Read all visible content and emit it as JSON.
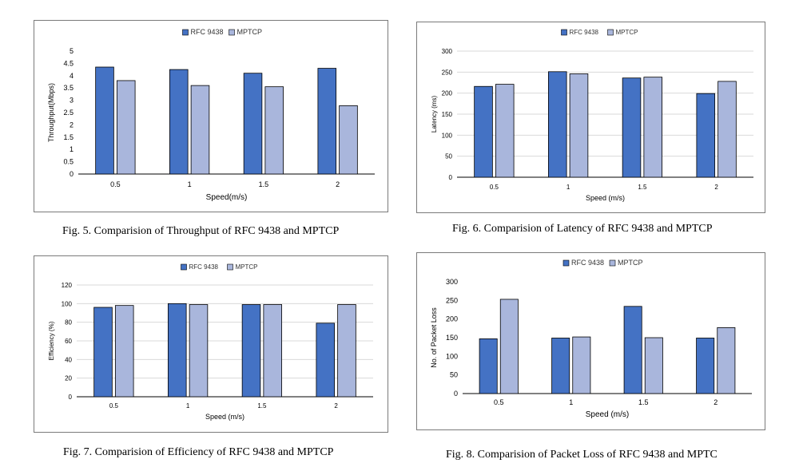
{
  "colors": {
    "rfc": "#4472c4",
    "mptcp": "#a9b6dc",
    "grid": "#d9d9d9",
    "axis": "#000000"
  },
  "captions": [
    "Fig. 5.  Comparision of  Throughput of RFC 9438 and MPTCP",
    "Fig. 6.  Comparision of  Latency of RFC 9438 and MPTCP",
    "Fig. 7.  Comparision of  Efficiency of  RFC 9438 and MPTCP",
    "Fig. 8.  Comparision of  Packet Loss of  RFC 9438 and MPTC"
  ],
  "chart_data": [
    {
      "type": "bar",
      "categories": [
        "0.5",
        "1",
        "1.5",
        "2"
      ],
      "series": [
        {
          "name": "RFC 9438",
          "values": [
            4.35,
            4.25,
            4.1,
            4.3
          ]
        },
        {
          "name": "MPTCP",
          "values": [
            3.8,
            3.6,
            3.55,
            2.78
          ]
        }
      ],
      "xlabel": "Speed(m/s)",
      "ylabel": "Throughput(Mbps)",
      "ylim": [
        0,
        5
      ],
      "yticks": [
        "0",
        "0.5",
        "1",
        "1.5",
        "2",
        "2.5",
        "3",
        "3.5",
        "4",
        "4.5",
        "5"
      ],
      "grid": false,
      "legend": "top-center"
    },
    {
      "type": "bar",
      "categories": [
        "0.5",
        "1",
        "1.5",
        "2"
      ],
      "series": [
        {
          "name": "RFC 9438",
          "values": [
            216,
            251,
            236,
            199
          ]
        },
        {
          "name": "MPTCP",
          "values": [
            221,
            246,
            238,
            228
          ]
        }
      ],
      "xlabel": "Speed (m/s)",
      "ylabel": "Latency (ms)",
      "ylim": [
        0,
        300
      ],
      "yticks": [
        "0",
        "50",
        "100",
        "150",
        "200",
        "250",
        "300"
      ],
      "grid": true,
      "legend": "top-center"
    },
    {
      "type": "bar",
      "categories": [
        "0.5",
        "1",
        "1.5",
        "2"
      ],
      "series": [
        {
          "name": "RFC 9438",
          "values": [
            96,
            100,
            99,
            79
          ]
        },
        {
          "name": "MPTCP",
          "values": [
            98,
            99,
            99,
            99
          ]
        }
      ],
      "xlabel": "Speed (m/s)",
      "ylabel": "Efficiency (%)",
      "ylim": [
        0,
        120
      ],
      "yticks": [
        "0",
        "20",
        "40",
        "60",
        "80",
        "100",
        "120"
      ],
      "grid": true,
      "legend": "top-center"
    },
    {
      "type": "bar",
      "categories": [
        "0.5",
        "1",
        "1.5",
        "2"
      ],
      "series": [
        {
          "name": "RFC 9438",
          "values": [
            147,
            149,
            234,
            149
          ]
        },
        {
          "name": "MPTCP",
          "values": [
            253,
            152,
            150,
            177
          ]
        }
      ],
      "xlabel": "Speed (m/s)",
      "ylabel": "No. of Packet Loss",
      "ylim": [
        0,
        300
      ],
      "yticks": [
        "0",
        "50",
        "100",
        "150",
        "200",
        "250",
        "300"
      ],
      "grid": false,
      "legend": "top-center"
    }
  ]
}
